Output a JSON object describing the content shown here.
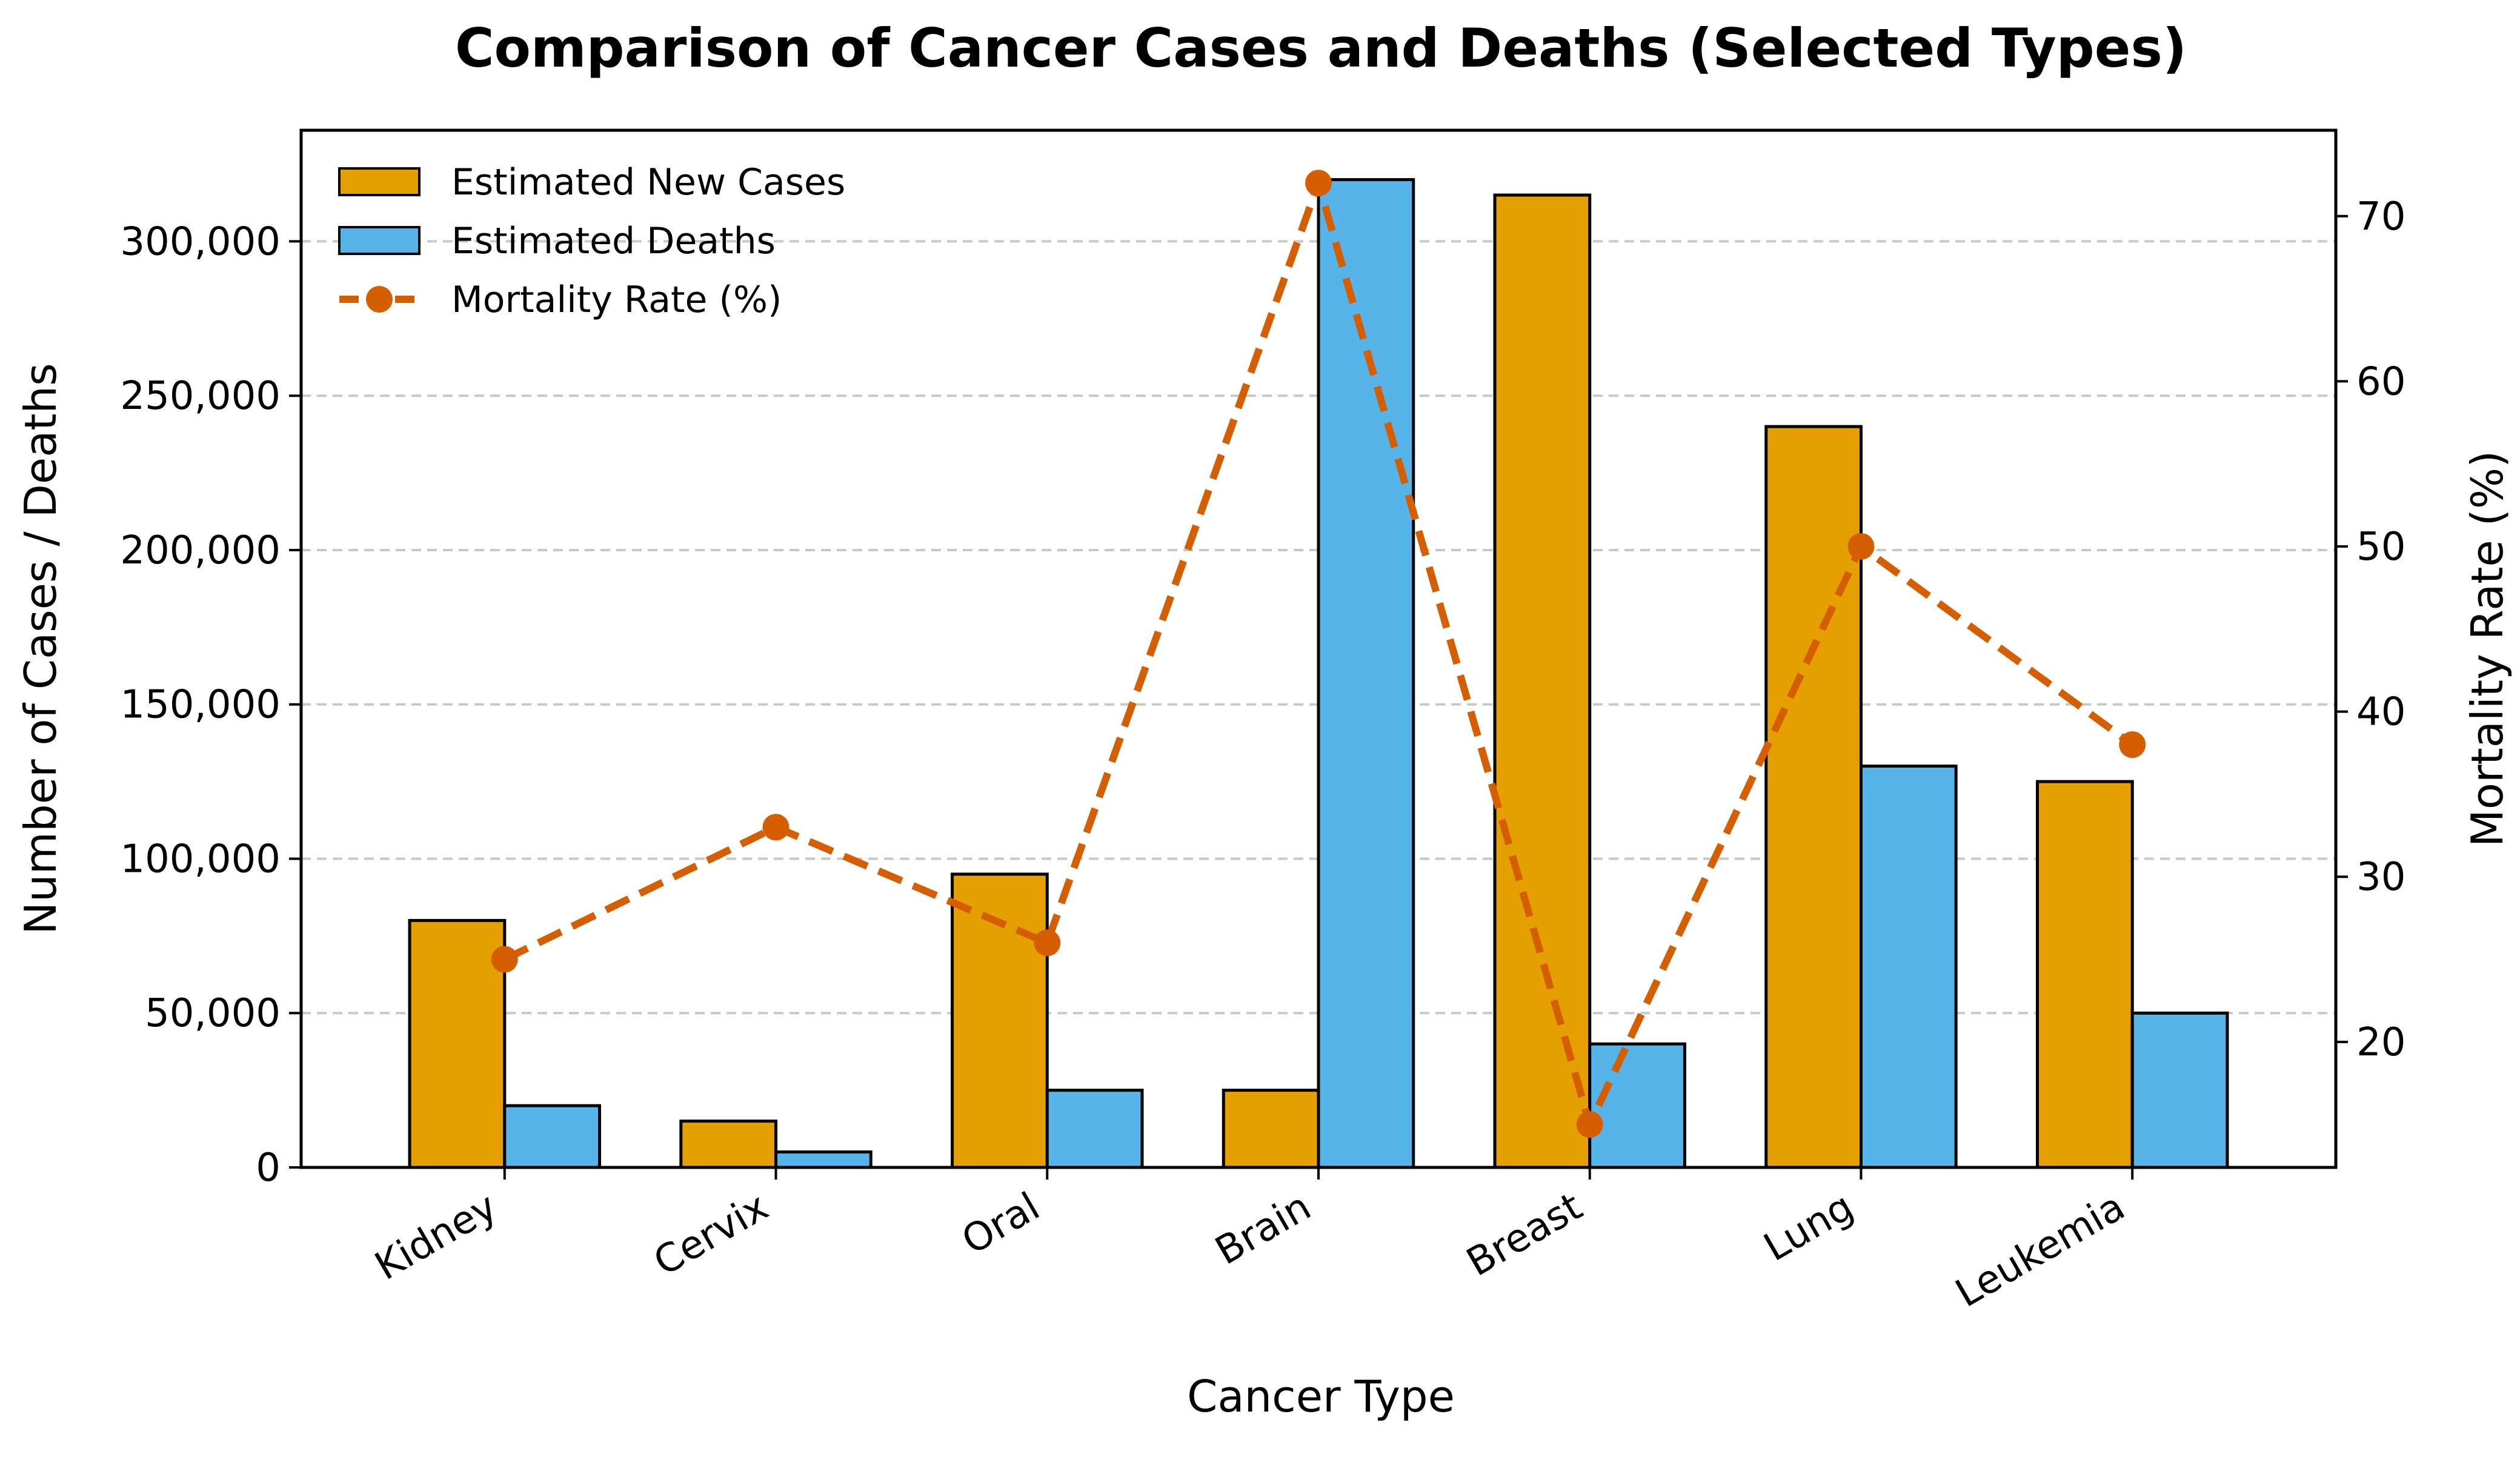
{
  "chart_data": {
    "type": "bar",
    "title": "Comparison of Cancer Cases and Deaths (Selected Types)",
    "xlabel": "Cancer Type",
    "ylabel": "Number of Cases / Deaths",
    "y2label": "Mortality Rate (%)",
    "categories": [
      "Kidney",
      "Cervix",
      "Oral",
      "Brain",
      "Breast",
      "Lung",
      "Leukemia"
    ],
    "series": [
      {
        "name": "Estimated New Cases",
        "type": "bar",
        "axis": "left",
        "color": "#E69F00",
        "values": [
          80000,
          15000,
          95000,
          25000,
          315000,
          240000,
          125000
        ]
      },
      {
        "name": "Estimated Deaths",
        "type": "bar",
        "axis": "left",
        "color": "#56B4E9",
        "values": [
          20000,
          5000,
          25000,
          320000,
          40000,
          130000,
          50000
        ]
      },
      {
        "name": "Mortality Rate (%)",
        "type": "line",
        "axis": "right",
        "color": "#D55E00",
        "values": [
          25,
          33,
          26,
          72,
          15,
          50,
          38
        ]
      }
    ],
    "ylim": [
      0,
      336000
    ],
    "y2lim": [
      12.4,
      75.2
    ],
    "yticks": [
      0,
      50000,
      100000,
      150000,
      200000,
      250000,
      300000
    ],
    "ytick_labels": [
      "0",
      "50,000",
      "100,000",
      "150,000",
      "200,000",
      "250,000",
      "300,000"
    ],
    "y2ticks": [
      20,
      30,
      40,
      50,
      60,
      70
    ],
    "y2tick_labels": [
      "20",
      "30",
      "40",
      "50",
      "60",
      "70"
    ],
    "grid": true,
    "legend_position": "top-left"
  }
}
